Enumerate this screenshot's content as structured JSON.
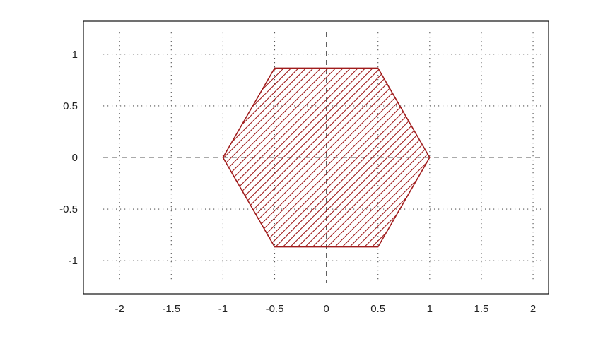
{
  "chart_data": {
    "type": "area",
    "title": "",
    "xlabel": "",
    "ylabel": "",
    "xlim": [
      -2.35,
      2.15
    ],
    "ylim": [
      -1.32,
      1.32
    ],
    "x_ticks": [
      -2,
      -1.5,
      -1,
      -0.5,
      0,
      0.5,
      1,
      1.5,
      2
    ],
    "x_tick_labels": [
      "-2",
      "-1.5",
      "-1",
      "-0.5",
      "0",
      "0.5",
      "1",
      "1.5",
      "2"
    ],
    "y_ticks": [
      1,
      0.5,
      0,
      -0.5,
      -1
    ],
    "y_tick_labels": [
      "1",
      "0.5",
      "0",
      "-0.5",
      "-1"
    ],
    "grid": true,
    "grid_style": "dotted",
    "zero_axes_style": "dashed",
    "fill_pattern": "diagonal-hatch",
    "series": [
      {
        "shape": "regular-hexagon",
        "color": "#a01c1c",
        "points": [
          {
            "x": 1,
            "y": 0
          },
          {
            "x": 0.5,
            "y": 0.866
          },
          {
            "x": -0.5,
            "y": 0.866
          },
          {
            "x": -1,
            "y": 0
          },
          {
            "x": -0.5,
            "y": -0.866
          },
          {
            "x": 0.5,
            "y": -0.866
          }
        ]
      }
    ]
  },
  "colors": {
    "frame": "#111111",
    "grid": "#555555",
    "axis": "#555555",
    "shape": "#a01c1c"
  }
}
